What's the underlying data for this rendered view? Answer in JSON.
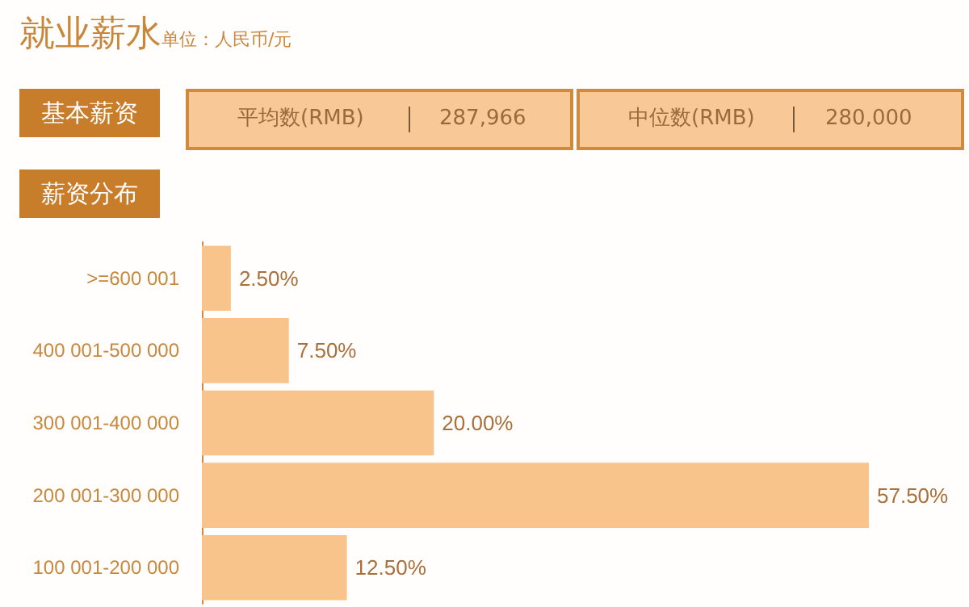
{
  "chart_data": {
    "type": "bar",
    "orientation": "horizontal",
    "title": "就业薪水",
    "subtitle": "单位：人民币/元",
    "annotations": [
      "基本薪资",
      "平均数(RMB)",
      "287,966",
      "中位数(RMB)",
      "280,000",
      "薪资分布"
    ],
    "categories": [
      ">=600 001",
      "400 001-500 000",
      "300 001-400 000",
      "200 001-300 000",
      "100 001-200 000"
    ],
    "values": [
      2.5,
      7.5,
      20.0,
      57.5,
      12.5
    ],
    "value_labels": [
      "2.50%",
      "7.50%",
      "20.00%",
      "57.50%",
      "12.50%"
    ],
    "color": "#f8c48c"
  }
}
